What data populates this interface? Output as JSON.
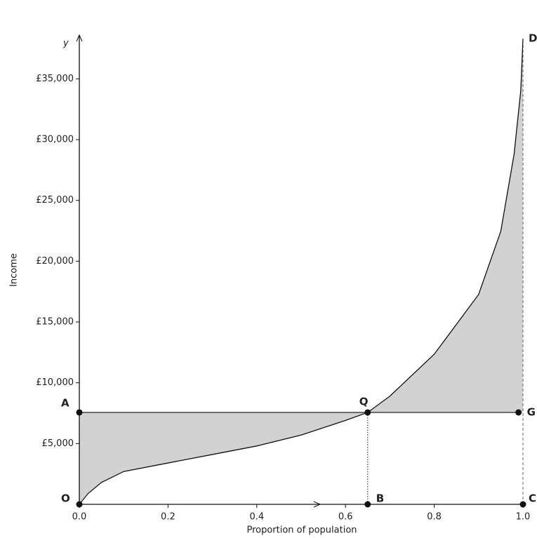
{
  "chart_data": {
    "type": "line",
    "y_label": "y",
    "ylabel": "Income",
    "xlabel": "Proportion of population",
    "xlim": [
      0,
      1
    ],
    "ylim": [
      0,
      38600
    ],
    "xticks": [
      {
        "value": 0,
        "label": "0.0"
      },
      0.2,
      0.4,
      0.6,
      0.8,
      {
        "value": 1,
        "label": "1.0"
      }
    ],
    "yticks": [
      {
        "value": 5000,
        "label": "£5,000"
      },
      {
        "value": 10000,
        "label": "£10,000"
      },
      {
        "value": 15000,
        "label": "£15,000"
      },
      {
        "value": 20000,
        "label": "£20,000"
      },
      {
        "value": 25000,
        "label": "£25,000"
      },
      {
        "value": 30000,
        "label": "£30,000"
      },
      {
        "value": 35000,
        "label": "£35,000"
      }
    ],
    "color": "#111111",
    "fill_color": "#d2d2d2",
    "curve": {
      "x": [
        0,
        0.02,
        0.05,
        0.1,
        0.2,
        0.3,
        0.4,
        0.5,
        0.6,
        0.65,
        0.7,
        0.8,
        0.9,
        0.95,
        0.98,
        0.995,
        1.0
      ],
      "y": [
        0,
        900,
        1800,
        2700,
        3400,
        4100,
        4800,
        5700,
        6900,
        7560,
        8900,
        12350,
        17260,
        22460,
        28800,
        34000,
        38300
      ]
    },
    "points": [
      {
        "label": "O",
        "x": 0,
        "y": 0,
        "dot": true
      },
      {
        "label": "A",
        "x": 0,
        "y": 7560,
        "dot": true
      },
      {
        "label": "Q",
        "x": 0.65,
        "y": 7560,
        "dot": true
      },
      {
        "label": "G",
        "x": 0.99,
        "y": 7560,
        "dot": true
      },
      {
        "label": "B",
        "x": 0.65,
        "y": 0,
        "dot": true
      },
      {
        "label": "C",
        "x": 1.0,
        "y": 0,
        "dot": true
      },
      {
        "label": "D",
        "x": 1.0,
        "y": 38300,
        "dot": false
      }
    ]
  }
}
